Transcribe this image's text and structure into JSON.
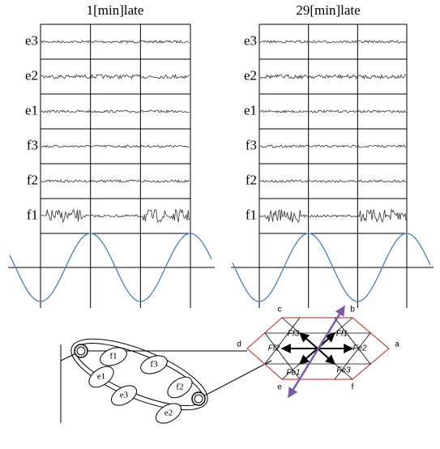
{
  "panels": [
    {
      "title": "1[min]late",
      "channels": [
        "e3",
        "e2",
        "e1",
        "f3",
        "f2",
        "f1"
      ]
    },
    {
      "title": "29[min]late",
      "channels": [
        "e3",
        "e2",
        "e1",
        "f3",
        "f2",
        "f1"
      ]
    }
  ],
  "arm": {
    "muscles": [
      "f1",
      "f3",
      "e1",
      "f2",
      "e3",
      "e2"
    ]
  },
  "hexagon": {
    "vertices": [
      "a",
      "b",
      "c",
      "d",
      "e",
      "f"
    ],
    "forces": [
      "Ff3",
      "Ff1",
      "Ff2",
      "Fe2",
      "Fe1",
      "Fe3"
    ]
  }
}
